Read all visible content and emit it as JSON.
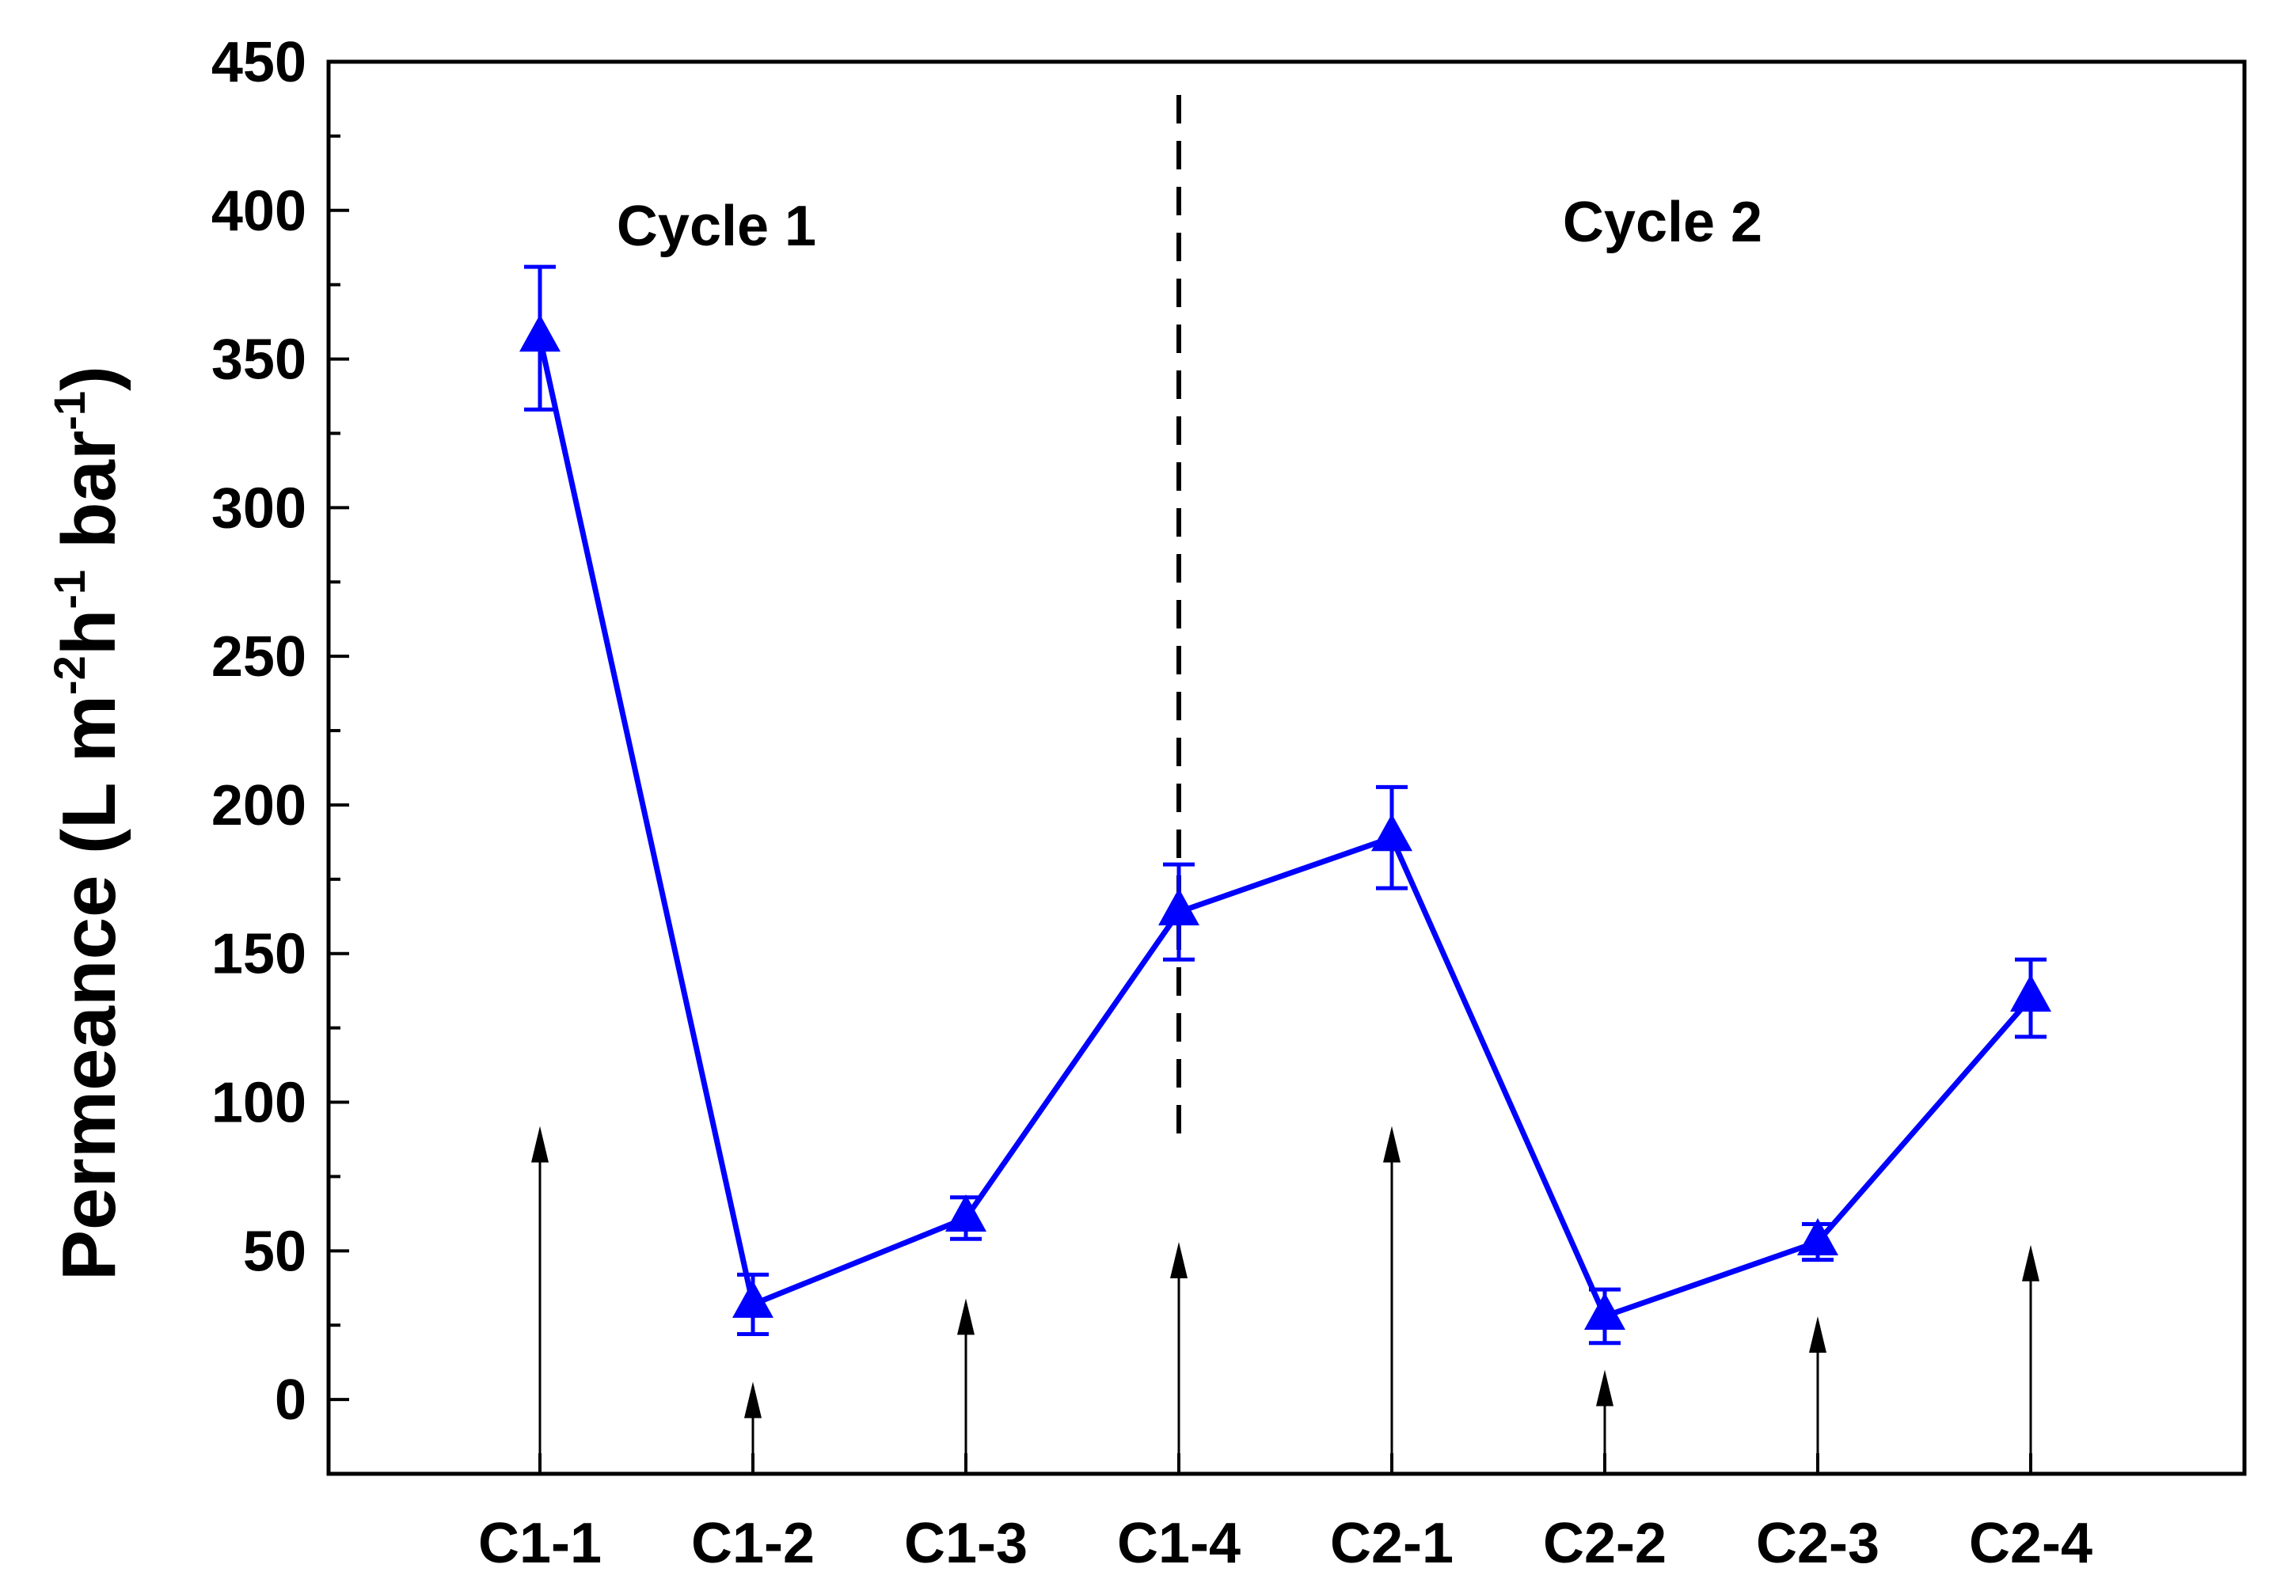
{
  "chart_data": {
    "type": "line",
    "categories": [
      "C1-1",
      "C1-2",
      "C1-3",
      "C1-4",
      "C2-1",
      "C2-2",
      "C2-3",
      "C2-4"
    ],
    "series": [
      {
        "name": "",
        "values": [
          357,
          32,
          61,
          164,
          189,
          28,
          53,
          135
        ],
        "error": [
          24,
          10,
          7,
          16,
          17,
          9,
          6,
          13
        ],
        "color": "#0000ff",
        "marker": "triangle"
      }
    ],
    "ylabel": {
      "base": "Permeance (L m",
      "sup1": "-2",
      "mid": "h",
      "sup2": "-1",
      "mid2": " bar",
      "sup3": "-1",
      "end": ")"
    },
    "xlabel": "",
    "ylim": [
      -25,
      450
    ],
    "yticks": [
      0,
      50,
      100,
      150,
      200,
      250,
      300,
      350,
      400,
      450
    ],
    "annotations": [
      "Cycle 1",
      "Cycle 2"
    ],
    "divider_after_category": "C1-4",
    "arrows": [
      {
        "category": "C1-1",
        "top": 92
      },
      {
        "category": "C1-2",
        "top": 6
      },
      {
        "category": "C1-3",
        "top": 34
      },
      {
        "category": "C1-4",
        "top": 53
      },
      {
        "category": "C2-1",
        "top": 92
      },
      {
        "category": "C2-2",
        "top": 10
      },
      {
        "category": "C2-3",
        "top": 28
      },
      {
        "category": "C2-4",
        "top": 52
      }
    ],
    "grid": false,
    "legend": "none"
  }
}
